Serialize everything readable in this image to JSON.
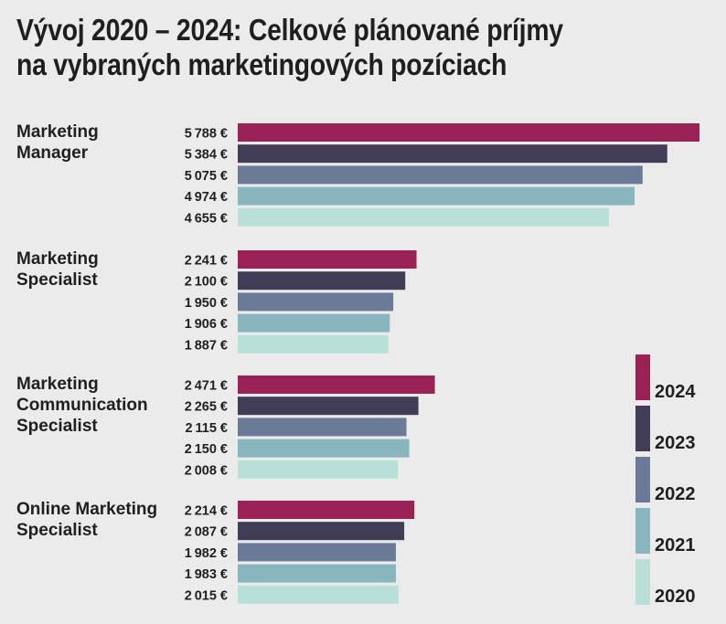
{
  "chart_data": {
    "type": "bar",
    "orientation": "horizontal",
    "title_lines": [
      "Vývoj 2020 – 2024: Celkové plánované príjmy",
      "na vybraných marketingových pozíciach"
    ],
    "currency_suffix": " €",
    "categories": [
      {
        "lines": [
          "Marketing",
          "Manager"
        ]
      },
      {
        "lines": [
          "Marketing",
          "Specialist"
        ]
      },
      {
        "lines": [
          "Marketing",
          "Communication",
          "Specialist"
        ]
      },
      {
        "lines": [
          "Online Marketing",
          "Specialist"
        ]
      }
    ],
    "series": [
      {
        "name": "2024",
        "color": "#9b2254",
        "values": [
          5788,
          2241,
          2471,
          2214
        ]
      },
      {
        "name": "2023",
        "color": "#423d57",
        "values": [
          5384,
          2100,
          2265,
          2087
        ]
      },
      {
        "name": "2022",
        "color": "#6b7a96",
        "values": [
          5075,
          1950,
          2115,
          1982
        ]
      },
      {
        "name": "2021",
        "color": "#87b6be",
        "values": [
          4974,
          1906,
          2150,
          1983
        ]
      },
      {
        "name": "2020",
        "color": "#b9e0d8",
        "values": [
          4655,
          1887,
          2008,
          2015
        ]
      }
    ],
    "legend_position": "bottom-right",
    "grid": false
  }
}
